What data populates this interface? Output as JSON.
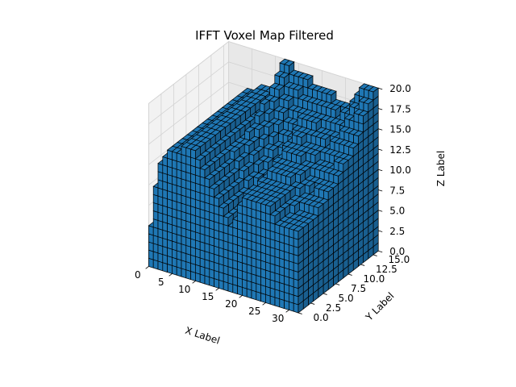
{
  "chart_data": {
    "type": "voxel",
    "title": "IFFT Voxel Map Filtered",
    "xlabel": "X Label",
    "ylabel": "Y Label",
    "zlabel": "Z Label",
    "xlim": [
      0,
      32
    ],
    "ylim": [
      0,
      16
    ],
    "zlim": [
      0,
      20
    ],
    "x_ticks": [
      "0",
      "5",
      "10",
      "15",
      "20",
      "25",
      "30"
    ],
    "y_ticks": [
      "0.0",
      "2.5",
      "5.0",
      "7.5",
      "10.0",
      "12.5",
      "15.0"
    ],
    "z_ticks": [
      "0.0",
      "2.5",
      "5.0",
      "7.5",
      "10.0",
      "12.5",
      "15.0",
      "17.5",
      "20.0"
    ],
    "grid": true,
    "voxel_color": "#1f77b4",
    "edge_color": "#000000",
    "x_profile": [
      {
        "x": 0,
        "top": 3
      },
      {
        "x": 2,
        "top": 12
      },
      {
        "x": 5,
        "top": 15
      },
      {
        "x": 10,
        "top": 16
      },
      {
        "x": 15,
        "top": 10
      },
      {
        "x": 18,
        "top": 8
      },
      {
        "x": 20,
        "top": 12
      },
      {
        "x": 25,
        "top": 12
      },
      {
        "x": 28,
        "top": 10
      },
      {
        "x": 30,
        "top": 10
      },
      {
        "x": 32,
        "top": 10
      }
    ],
    "back_profile": [
      {
        "x": 12,
        "top": 20
      },
      {
        "x": 20,
        "top": 18
      },
      {
        "x": 26,
        "top": 17
      },
      {
        "x": 30,
        "top": 20
      },
      {
        "x": 32,
        "top": 20
      }
    ]
  }
}
